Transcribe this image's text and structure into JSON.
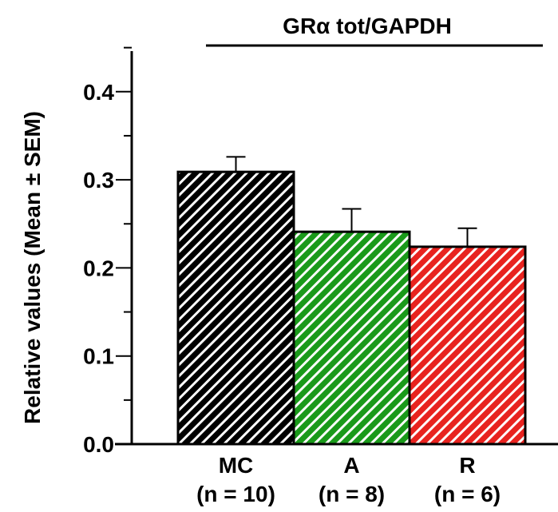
{
  "chart_data": {
    "type": "bar",
    "title": "GRα tot/GAPDH",
    "ylabel": "Relative values (Mean ± SEM)",
    "xlabel": "",
    "categories": [
      "MC",
      "A",
      "R"
    ],
    "category_sublabels": [
      "(n = 10)",
      "(n = 8)",
      "(n = 6)"
    ],
    "values": [
      0.309,
      0.241,
      0.224
    ],
    "sem": [
      0.017,
      0.026,
      0.021
    ],
    "bar_colors": [
      "#000000",
      "#1a9a1a",
      "#e8231f"
    ],
    "bar_pattern": "diagonal white stripes",
    "ylim": [
      0,
      0.45
    ],
    "yticks": [
      "0.0",
      "0.1",
      "0.2",
      "0.3",
      "0.4"
    ],
    "grid": false
  }
}
